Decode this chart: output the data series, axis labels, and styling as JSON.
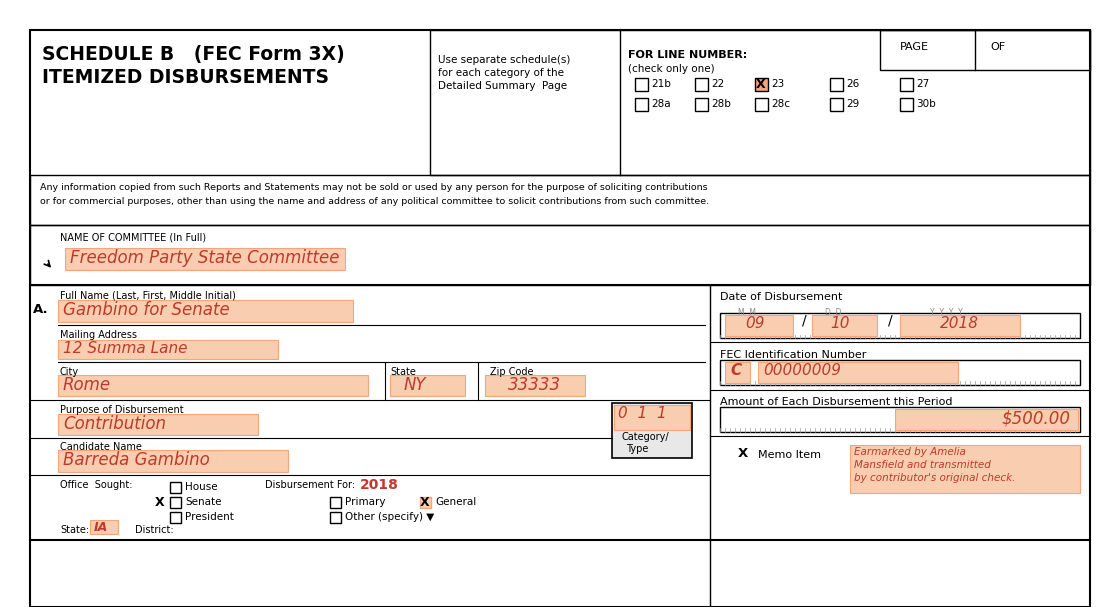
{
  "title_line1": "SCHEDULE B   (FEC Form 3X)",
  "title_line2": "ITEMIZED DISBURSEMENTS",
  "use_separate_1": "Use separate schedule(s)",
  "use_separate_2": "for each category of the",
  "use_separate_3": "Detailed Summary  Page",
  "for_line_number": "FOR LINE NUMBER:",
  "check_only_one": "(check only one)",
  "page_label": "PAGE",
  "of_label": "OF",
  "line_numbers_row1": [
    "21b",
    "22",
    "23",
    "26",
    "27"
  ],
  "line_numbers_row2": [
    "28a",
    "28b",
    "28c",
    "29",
    "30b"
  ],
  "checked_line": "23",
  "disclaimer_1": "Any information copied from such Reports and Statements may not be sold or used by any person for the purpose of soliciting contributions",
  "disclaimer_2": "or for commercial purposes, other than using the name and address of any political committee to solicit contributions from such committee.",
  "committee_label": "NAME OF COMMITTEE (In Full)",
  "committee_name": "Freedom Party State Committee",
  "full_name_label": "Full Name (Last, First, Middle Initial)",
  "entry_label": "A.",
  "payee_name": "Gambino for Senate",
  "mailing_address_label": "Mailing Address",
  "mailing_address": "12 Summa Lane",
  "city_label": "City",
  "city": "Rome",
  "state_label": "State",
  "state_val": "NY",
  "zip_label": "Zip Code",
  "zip": "33333",
  "purpose_label": "Purpose of Disbursement",
  "purpose": "Contribution",
  "category_type_label1": "Category/",
  "category_type_label2": "Type",
  "category_code": "0  1  1",
  "candidate_label": "Candidate Name",
  "candidate_name": "Barreda Gambino",
  "office_sought_label": "Office  Sought:",
  "house": "House",
  "senate": "Senate",
  "president": "President",
  "disbursement_for_label": "Disbursement For:",
  "disbursement_year": "2018",
  "primary": "Primary",
  "general": "General",
  "other_specify": "Other (specify) ▼",
  "state_label2": "State:",
  "state_value": "IA",
  "district_label": "District:",
  "date_label": "Date of Disbursement",
  "date_mm_label": "M  M",
  "date_dd_label": "D  D",
  "date_yyyy_label": "Y  Y  Y  Y",
  "date_mm": "09",
  "date_dd": "10",
  "date_yyyy": "2018",
  "fec_id_label": "FEC Identification Number",
  "fec_id_letter": "C",
  "fec_id_number": "00000009",
  "amount_label": "Amount of Each Disbursement this Period",
  "amount": "$500.00",
  "memo_item_label": "Memo Item",
  "memo_text_1": "Earmarked by Amelia",
  "memo_text_2": "Mansfield and transmitted",
  "memo_text_3": "by contributor's original check.",
  "highlight_color": "#f4a57a",
  "highlight_light": "#f9cdb0",
  "bg_color": "#ffffff",
  "text_color": "#000000",
  "highlight_text_color": "#c0392b",
  "gray_color": "#888888"
}
